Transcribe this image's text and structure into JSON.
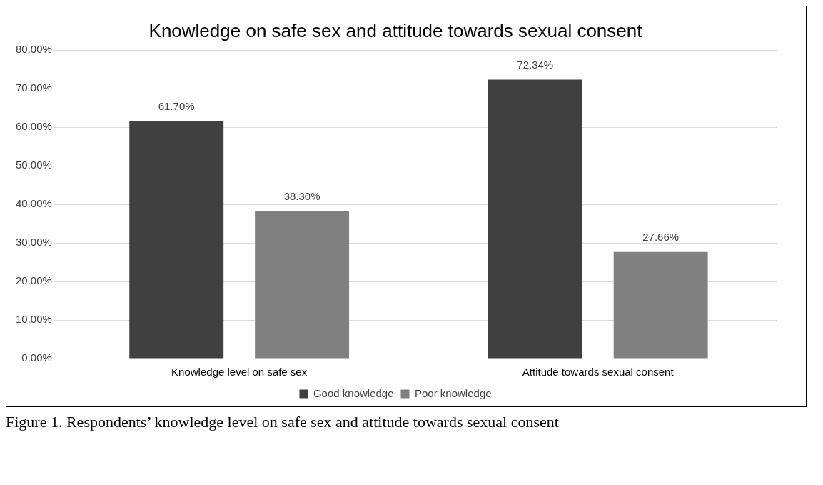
{
  "chart_data": {
    "type": "bar",
    "title": "Knowledge on safe sex and attitude towards sexual consent",
    "categories": [
      "Knowledge level on safe sex",
      "Attitude towards sexual consent"
    ],
    "series": [
      {
        "name": "Good knowledge",
        "color": "#404040",
        "values": [
          61.7,
          72.34
        ],
        "value_labels": [
          "61.70%",
          "72.34%"
        ]
      },
      {
        "name": "Poor knowledge",
        "color": "#808080",
        "values": [
          38.3,
          27.66
        ],
        "value_labels": [
          "38.30%",
          "27.66%"
        ]
      }
    ],
    "ylim": [
      0,
      80
    ],
    "yticks": [
      {
        "value": 0,
        "label": "0.00%"
      },
      {
        "value": 10,
        "label": "10.00%"
      },
      {
        "value": 20,
        "label": "20.00%"
      },
      {
        "value": 30,
        "label": "30.00%"
      },
      {
        "value": 40,
        "label": "40.00%"
      },
      {
        "value": 50,
        "label": "50.00%"
      },
      {
        "value": 60,
        "label": "60.00%"
      },
      {
        "value": 70,
        "label": "70.00%"
      },
      {
        "value": 80,
        "label": "80.00%"
      }
    ],
    "grid": "y",
    "legend": "bottom",
    "annotations": [
      "Figure 1. Respondents’ knowledge level on safe sex and attitude towards sexual consent"
    ]
  }
}
